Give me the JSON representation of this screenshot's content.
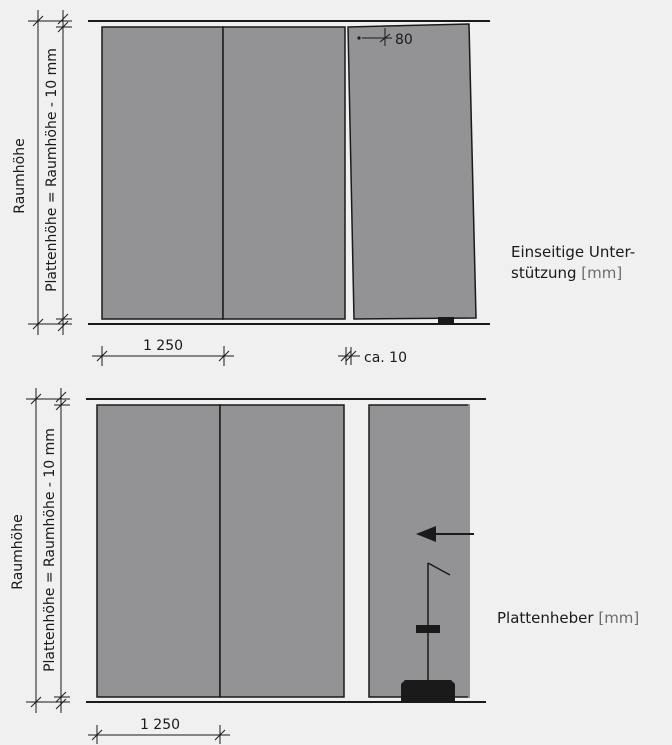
{
  "figures": [
    {
      "id": "one-sided-support",
      "room_height_label": "Raumhöhe",
      "panel_height_label": "Plattenhöhe = Raumhöhe - 10 mm",
      "panel_width_label": "1 250",
      "gap_label": "ca. 10",
      "tilt_label": "80",
      "caption_text": "Einseitige Unter-\nstützung",
      "caption_unit": "[mm]"
    },
    {
      "id": "panel-lifter",
      "room_height_label": "Raumhöhe",
      "panel_height_label": "Plattenhöhe = Raumhöhe - 10 mm",
      "panel_width_label": "1 250",
      "caption_text": "Plattenheber",
      "caption_unit": "[mm]"
    }
  ],
  "colors": {
    "panel_fill": "#939396",
    "line": "#1a1a1a",
    "background": "#f0f0f1"
  }
}
